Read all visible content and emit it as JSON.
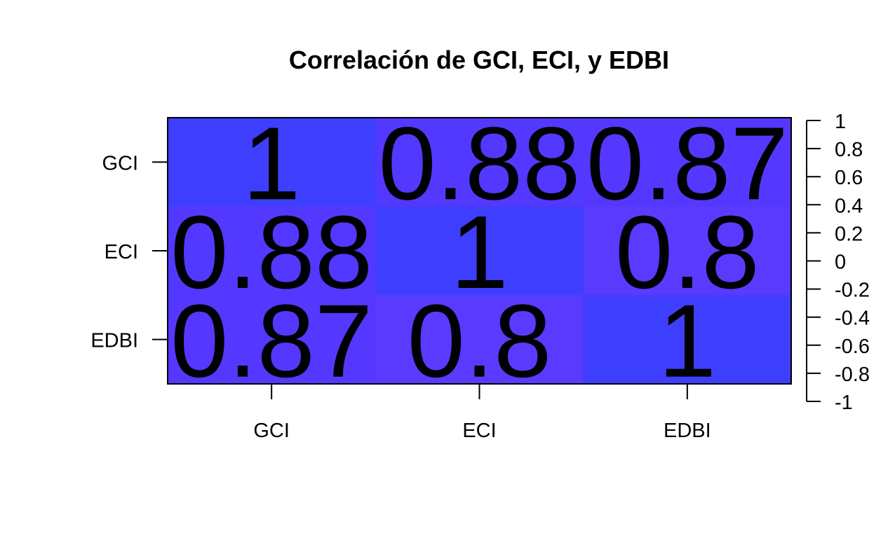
{
  "chart_data": {
    "type": "heatmap",
    "title": "Correlación de GCI, ECI, y EDBI",
    "xlabel": "",
    "ylabel": "",
    "rows": [
      "GCI",
      "ECI",
      "EDBI"
    ],
    "columns": [
      "GCI",
      "ECI",
      "EDBI"
    ],
    "matrix": [
      [
        1,
        0.88,
        0.87
      ],
      [
        0.88,
        1,
        0.8
      ],
      [
        0.87,
        0.8,
        1
      ]
    ],
    "cell_labels": [
      [
        "1",
        "0.88",
        "0.87"
      ],
      [
        "0.88",
        "1",
        "0.8"
      ],
      [
        "0.87",
        "0.8",
        "1"
      ]
    ],
    "colorbar": {
      "range": [
        -1,
        1
      ],
      "ticks": [
        "1",
        "0.8",
        "0.6",
        "0.4",
        "0.2",
        "0",
        "-0.2",
        "-0.4",
        "-0.6",
        "-0.8",
        "-1"
      ],
      "placement": "right"
    },
    "colors": {
      "value_1": "#3e3eff",
      "value_088": "#5338ff",
      "value_087": "#5438ff",
      "value_08": "#5a3aff",
      "border": "#000000"
    }
  }
}
